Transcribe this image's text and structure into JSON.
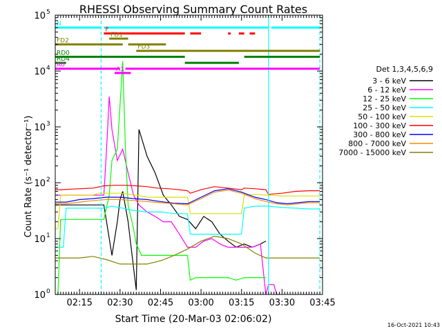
{
  "chart_data": {
    "type": "line",
    "title": "RHESSI Observing Summary Count Rates",
    "xlabel": "Start Time (20-Mar-03 02:06:02)",
    "ylabel": "Count Rate (s⁻¹ detector⁻¹)",
    "x_unit": "UT time (hh:mm), 20-Mar-2003",
    "xlim": [
      "02:06",
      "03:45"
    ],
    "x_ticks": [
      "02:15",
      "02:30",
      "02:45",
      "03:00",
      "03:15",
      "03:30",
      "03:45"
    ],
    "y_scale": "log",
    "ylim": [
      1,
      100000
    ],
    "y_ticks": [
      {
        "value": 1,
        "label": "10",
        "exp": "0"
      },
      {
        "value": 10,
        "label": "10",
        "exp": "1"
      },
      {
        "value": 100,
        "label": "10",
        "exp": "2"
      },
      {
        "value": 1000,
        "label": "10",
        "exp": "3"
      },
      {
        "value": 10000,
        "label": "10",
        "exp": "4"
      },
      {
        "value": 100000,
        "label": "10",
        "exp": "5"
      }
    ],
    "legend": {
      "title": "Det 1,3,4,5,6,9",
      "placement": "right"
    },
    "footer_text": "16-Oct-2021 10:43",
    "series": [
      {
        "name": "3 - 6 keV",
        "color": "#000000",
        "x": [
          "02:06",
          "02:15",
          "02:24",
          "02:27",
          "02:29",
          "02:30",
          "02:31",
          "02:33",
          "02:35",
          "02:36",
          "02:37",
          "02:40",
          "02:43",
          "02:46",
          "02:49",
          "02:52",
          "02:55",
          "02:58",
          "03:01",
          "03:04",
          "03:07",
          "03:10",
          "03:13",
          "03:16",
          "03:19",
          "03:22",
          "03:24"
        ],
        "y": [
          40,
          40,
          40,
          5,
          20,
          50,
          70,
          20,
          3,
          1.2,
          900,
          300,
          150,
          60,
          40,
          25,
          22,
          15,
          25,
          20,
          12,
          9,
          7,
          8,
          7,
          8,
          9
        ]
      },
      {
        "name": "6 - 12 keV",
        "color": "#ff00ff",
        "x": [
          "02:06",
          "02:15",
          "02:24",
          "02:25",
          "02:26",
          "02:27",
          "02:29",
          "02:31",
          "02:33",
          "02:35",
          "02:37",
          "02:40",
          "02:43",
          "02:46",
          "02:49",
          "02:52",
          "02:55",
          "02:58",
          "03:01",
          "03:04",
          "03:07",
          "03:10",
          "03:13",
          "03:16",
          "03:19",
          "03:22",
          "03:24",
          "03:25",
          "03:27",
          "03:28",
          "03:29"
        ],
        "y": [
          60,
          60,
          60,
          400,
          3500,
          900,
          250,
          400,
          150,
          60,
          40,
          30,
          25,
          20,
          20,
          12,
          7,
          7,
          9,
          10,
          8,
          7,
          7,
          7,
          7,
          8,
          1,
          1.5,
          1.5,
          1,
          1
        ]
      },
      {
        "name": "12 - 25 keV",
        "color": "#00ff00",
        "x": [
          "02:06",
          "02:07",
          "02:08",
          "02:14",
          "02:20",
          "02:24",
          "02:26",
          "02:27",
          "02:29",
          "02:31",
          "02:32",
          "02:33",
          "02:35",
          "02:36",
          "02:38",
          "02:40",
          "02:44",
          "02:48",
          "02:52",
          "02:55",
          "02:56",
          "02:58",
          "03:00",
          "03:03",
          "03:06",
          "03:10",
          "03:13",
          "03:16",
          "03:20",
          "03:24"
        ],
        "y": [
          1,
          1,
          22,
          22,
          22,
          22,
          60,
          250,
          400,
          15000,
          400,
          40,
          15,
          8,
          5,
          5,
          5,
          5,
          5,
          5,
          1.8,
          2,
          2,
          2,
          2,
          2,
          1.8,
          2,
          2,
          2
        ]
      },
      {
        "name": "25 - 50 keV",
        "color": "#00ffff",
        "x": [
          "02:06",
          "02:09",
          "02:10",
          "02:20",
          "02:24",
          "02:27",
          "02:31",
          "02:35",
          "02:40",
          "02:45",
          "02:50",
          "02:55",
          "02:56",
          "03:00",
          "03:05",
          "03:10",
          "03:15",
          "03:16",
          "03:20",
          "03:24",
          "03:25",
          "03:30",
          "03:35",
          "03:40",
          "03:44"
        ],
        "y": [
          7,
          7,
          35,
          35,
          35,
          38,
          35,
          32,
          30,
          30,
          28,
          28,
          12,
          12,
          12,
          12,
          12,
          35,
          38,
          38,
          38,
          36,
          35,
          34,
          34
        ]
      },
      {
        "name": "50 - 100 keV",
        "color": "#dddd00",
        "x": [
          "02:06",
          "02:07",
          "02:08",
          "02:20",
          "02:22",
          "02:30",
          "02:36",
          "02:40",
          "02:45",
          "02:50",
          "02:55",
          "02:56",
          "03:00",
          "03:05",
          "03:10",
          "03:15",
          "03:16",
          "03:20",
          "03:25",
          "03:30",
          "03:35",
          "03:40",
          "03:44"
        ],
        "y": [
          15,
          15,
          60,
          60,
          65,
          65,
          60,
          55,
          55,
          55,
          55,
          28,
          28,
          28,
          28,
          28,
          60,
          62,
          60,
          58,
          58,
          58,
          58
        ]
      },
      {
        "name": "100 - 300 keV",
        "color": "#ff0000",
        "x": [
          "02:06",
          "02:08",
          "02:15",
          "02:20",
          "02:24",
          "02:28",
          "02:32",
          "02:36",
          "02:40",
          "02:44",
          "02:48",
          "02:52",
          "02:55",
          "02:56",
          "03:00",
          "03:05",
          "03:10",
          "03:15",
          "03:16",
          "03:20",
          "03:24",
          "03:25",
          "03:30",
          "03:35",
          "03:40",
          "03:44"
        ],
        "y": [
          75,
          75,
          78,
          80,
          88,
          90,
          90,
          88,
          85,
          80,
          78,
          75,
          72,
          65,
          75,
          85,
          80,
          75,
          80,
          78,
          75,
          62,
          65,
          70,
          72,
          72
        ]
      },
      {
        "name": "300 - 800 keV",
        "color": "#0000ff",
        "x": [
          "02:06",
          "02:10",
          "02:15",
          "02:20",
          "02:25",
          "02:30",
          "02:35",
          "02:40",
          "02:45",
          "02:50",
          "02:55",
          "03:00",
          "03:05",
          "03:10",
          "03:15",
          "03:20",
          "03:24",
          "03:28",
          "03:32",
          "03:36",
          "03:40",
          "03:44"
        ],
        "y": [
          45,
          45,
          50,
          52,
          55,
          55,
          52,
          50,
          46,
          43,
          42,
          55,
          72,
          78,
          68,
          55,
          50,
          44,
          42,
          44,
          46,
          46
        ]
      },
      {
        "name": "800 - 7000 keV",
        "color": "#ff8800",
        "x": [
          "02:06",
          "02:10",
          "02:15",
          "02:20",
          "02:25",
          "02:30",
          "02:35",
          "02:40",
          "02:45",
          "02:50",
          "02:55",
          "03:00",
          "03:05",
          "03:10",
          "03:15",
          "03:20",
          "03:24",
          "03:28",
          "03:32",
          "03:36",
          "03:40",
          "03:44"
        ],
        "y": [
          42,
          42,
          45,
          48,
          50,
          50,
          48,
          46,
          44,
          42,
          40,
          52,
          68,
          74,
          65,
          52,
          46,
          42,
          40,
          42,
          44,
          44
        ]
      },
      {
        "name": "7000 - 15000 keV",
        "color": "#808000",
        "x": [
          "02:06",
          "02:10",
          "02:15",
          "02:20",
          "02:25",
          "02:30",
          "02:35",
          "02:40",
          "02:45",
          "02:50",
          "02:55",
          "03:00",
          "03:05",
          "03:10",
          "03:15",
          "03:20",
          "03:24",
          "03:28",
          "03:32",
          "03:36",
          "03:40",
          "03:44"
        ],
        "y": [
          4.5,
          4.5,
          4.5,
          4.8,
          4.2,
          3.5,
          3.5,
          3.5,
          4,
          5,
          6.5,
          9,
          11,
          10,
          8,
          5.5,
          4.5,
          4.5,
          4.5,
          4.5,
          4.5,
          4.5
        ]
      }
    ],
    "state_bars": [
      {
        "label": "N",
        "label_color": "#00ffff",
        "color": "#00ffff",
        "level": 60000,
        "segments": [
          [
            "02:06",
            "02:23"
          ],
          [
            "02:24",
            "03:25"
          ],
          [
            "03:26",
            "03:44"
          ]
        ]
      },
      {
        "label": "F",
        "label_color": "#ff0000",
        "color": "#ff0000",
        "level": 47000,
        "segments": [
          [
            "02:24",
            "02:54"
          ],
          [
            "02:56",
            "03:00"
          ],
          [
            "03:10",
            "03:11"
          ],
          [
            "03:14",
            "03:16"
          ],
          [
            "03:18",
            "03:20"
          ]
        ]
      },
      {
        "label": "FD1",
        "label_color": "#808000",
        "color": "#808000",
        "level": 38000,
        "segments": [
          [
            "02:26",
            "02:33"
          ]
        ]
      },
      {
        "label": "FD2",
        "label_color": "#808000",
        "color": "#808000",
        "level": 30000,
        "segments": [
          [
            "02:06",
            "02:31"
          ],
          [
            "02:33",
            "02:47"
          ]
        ]
      },
      {
        "label": "FD3",
        "label_color": "#808000",
        "color": "#808000",
        "level": 23000,
        "segments": [
          [
            "02:36",
            "03:44"
          ]
        ]
      },
      {
        "label": "RD0",
        "label_color": "#008000",
        "color": "#008000",
        "level": 18000,
        "segments": [
          [
            "02:06",
            "02:54"
          ],
          [
            "03:16",
            "03:44"
          ]
        ]
      },
      {
        "label": "RD4",
        "label_color": "#008000",
        "color": "#008000",
        "level": 14000,
        "segments": [
          [
            "02:06",
            "02:10"
          ],
          [
            "02:54",
            "03:14"
          ]
        ]
      },
      {
        "label": "A0",
        "label_color": "#ff00ff",
        "color": "#ff00ff",
        "level": 11000,
        "segments": [
          [
            "02:06",
            "02:30"
          ],
          [
            "02:32",
            "03:44"
          ]
        ]
      },
      {
        "label": "A1",
        "label_color": "#ff00ff",
        "color": "#ff00ff",
        "level": 9200,
        "segments": [
          [
            "02:28",
            "02:34"
          ]
        ]
      }
    ],
    "vertical_markers": [
      {
        "x": "02:23",
        "color": "#00ffff",
        "style": "dashed"
      },
      {
        "x": "03:25",
        "color": "#00ffff",
        "style": "solid"
      },
      {
        "x": "03:44",
        "color": "#00ffff",
        "style": "dashed"
      }
    ]
  }
}
